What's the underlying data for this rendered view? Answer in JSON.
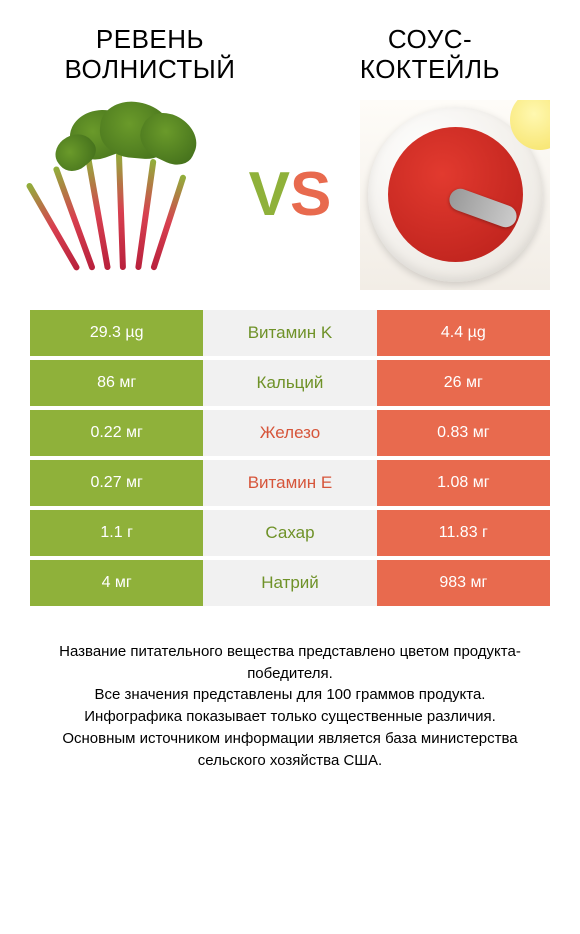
{
  "products": {
    "left": {
      "name": "РЕВЕНЬ ВОЛНИСТЫЙ",
      "color": "#8fb13a"
    },
    "right": {
      "name": "СОУС-КОКТЕЙЛЬ",
      "color": "#e86a4e"
    }
  },
  "vs": {
    "v": "V",
    "s": "S",
    "v_color": "#8fb13a",
    "s_color": "#e86a4e"
  },
  "table": {
    "left_bg": "#8fb13a",
    "right_bg": "#e86a4e",
    "mid_bg": "#f1f1f1",
    "green_text": "#6f9228",
    "orange_text": "#d6553a",
    "rows": [
      {
        "left": "29.3 µg",
        "label": "Витамин K",
        "right": "4.4 µg",
        "winner": "left"
      },
      {
        "left": "86 мг",
        "label": "Кальций",
        "right": "26 мг",
        "winner": "left"
      },
      {
        "left": "0.22 мг",
        "label": "Железо",
        "right": "0.83 мг",
        "winner": "right"
      },
      {
        "left": "0.27 мг",
        "label": "Витамин E",
        "right": "1.08 мг",
        "winner": "right"
      },
      {
        "left": "1.1 г",
        "label": "Сахар",
        "right": "11.83 г",
        "winner": "left"
      },
      {
        "left": "4 мг",
        "label": "Натрий",
        "right": "983 мг",
        "winner": "left"
      }
    ]
  },
  "footnote": {
    "l1": "Название питательного вещества представлено цветом продукта-победителя.",
    "l2": "Все значения представлены для 100 граммов продукта.",
    "l3": "Инфографика показывает только существенные различия.",
    "l4": "Основным источником информации является база министерства сельского хозяйства США."
  }
}
